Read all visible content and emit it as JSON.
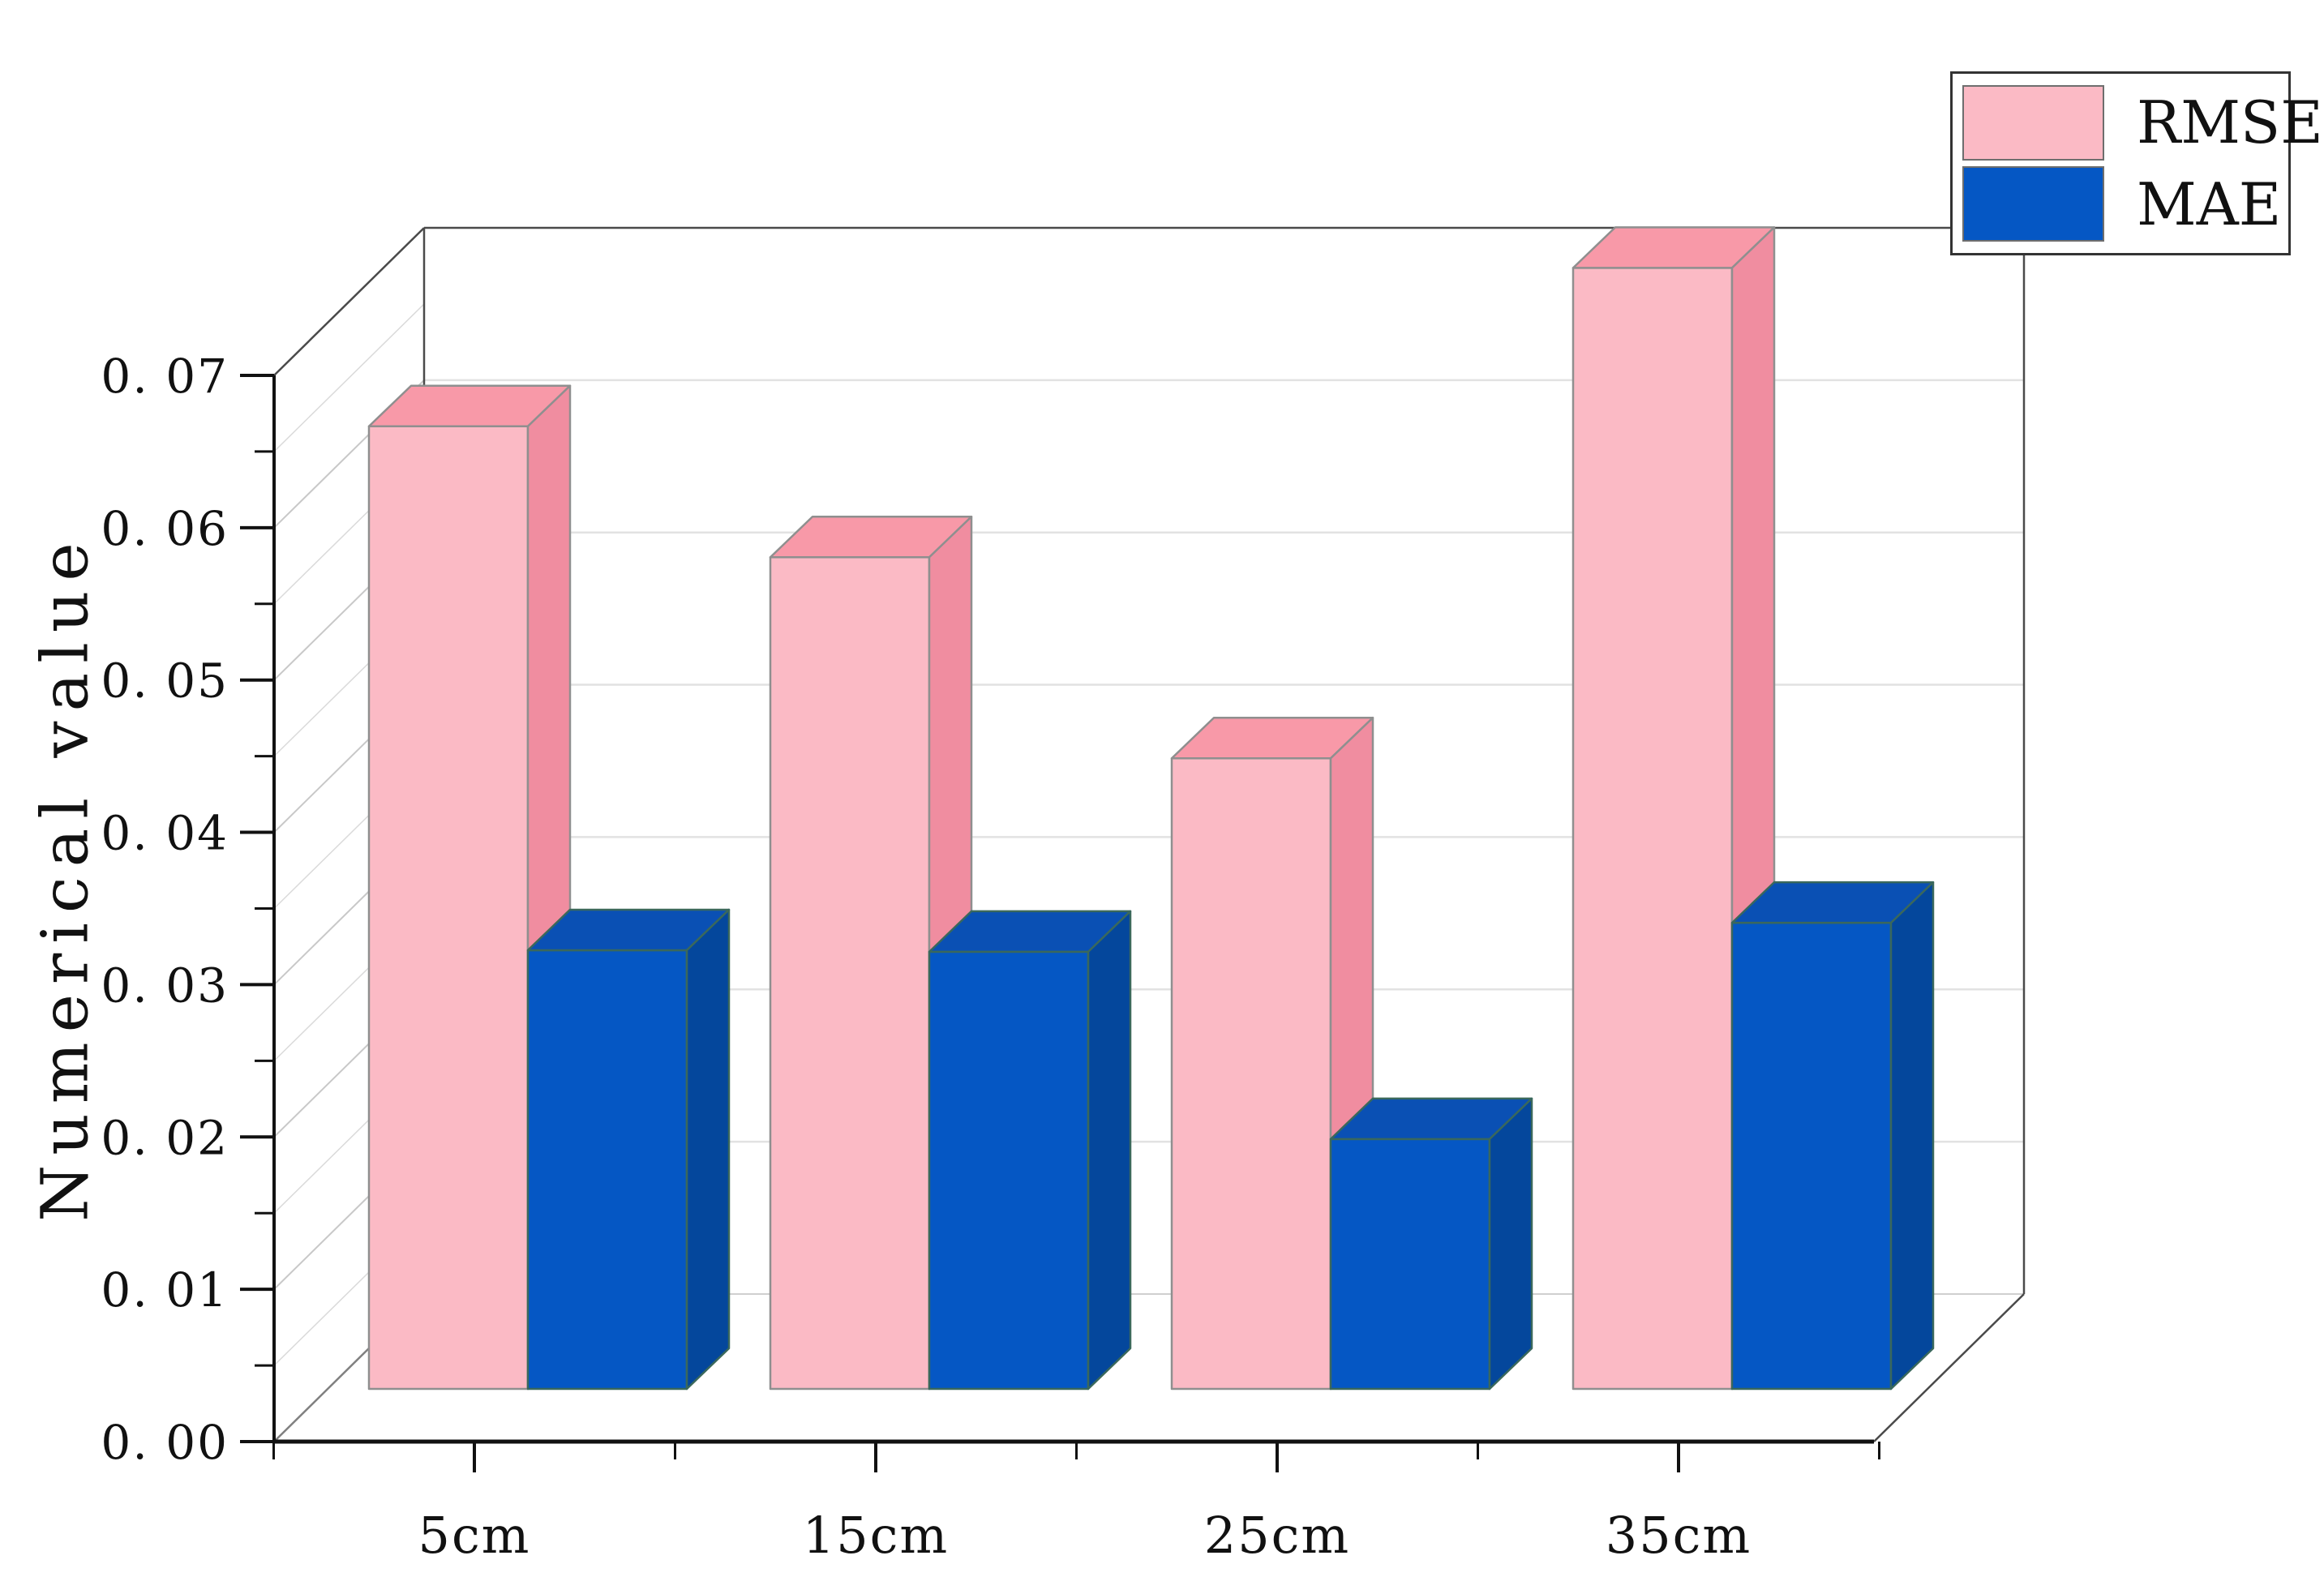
{
  "figure": {
    "background": "#ffffff"
  },
  "y_axis": {
    "title": "Numerical value",
    "tick_labels": [
      "0. 00",
      "0. 01",
      "0. 02",
      "0. 03",
      "0. 04",
      "0. 05",
      "0. 06",
      "0. 07"
    ]
  },
  "x_axis": {
    "tick_labels": [
      "5cm",
      "15cm",
      "25cm",
      "35cm"
    ]
  },
  "legend": {
    "items": [
      {
        "label": "RMSE",
        "color": "#fbbac5"
      },
      {
        "label": "MAE",
        "color": "#0557c4"
      }
    ]
  },
  "chart_data": {
    "type": "bar",
    "projection": "3d-oblique",
    "categories": [
      "5cm",
      "15cm",
      "25cm",
      "35cm"
    ],
    "series": [
      {
        "name": "RMSE",
        "values": [
          0.0632,
          0.0546,
          0.0414,
          0.0736
        ],
        "colors": {
          "front": "#fbbac5",
          "top": "#f899a8",
          "side": "#f08da0",
          "edge": "#8f8f8f"
        }
      },
      {
        "name": "MAE",
        "values": [
          0.0288,
          0.0287,
          0.0164,
          0.0306
        ],
        "colors": {
          "front": "#0557c4",
          "top": "#0a50b4",
          "side": "#04479c",
          "edge": "#3a685c"
        }
      }
    ],
    "title": "",
    "xlabel": "",
    "ylabel": "Numerical value",
    "ylim": [
      0,
      0.07
    ],
    "y_major_step": 0.01,
    "y_minor_step": 0.005,
    "grid": true,
    "legend_position": "top-right"
  }
}
